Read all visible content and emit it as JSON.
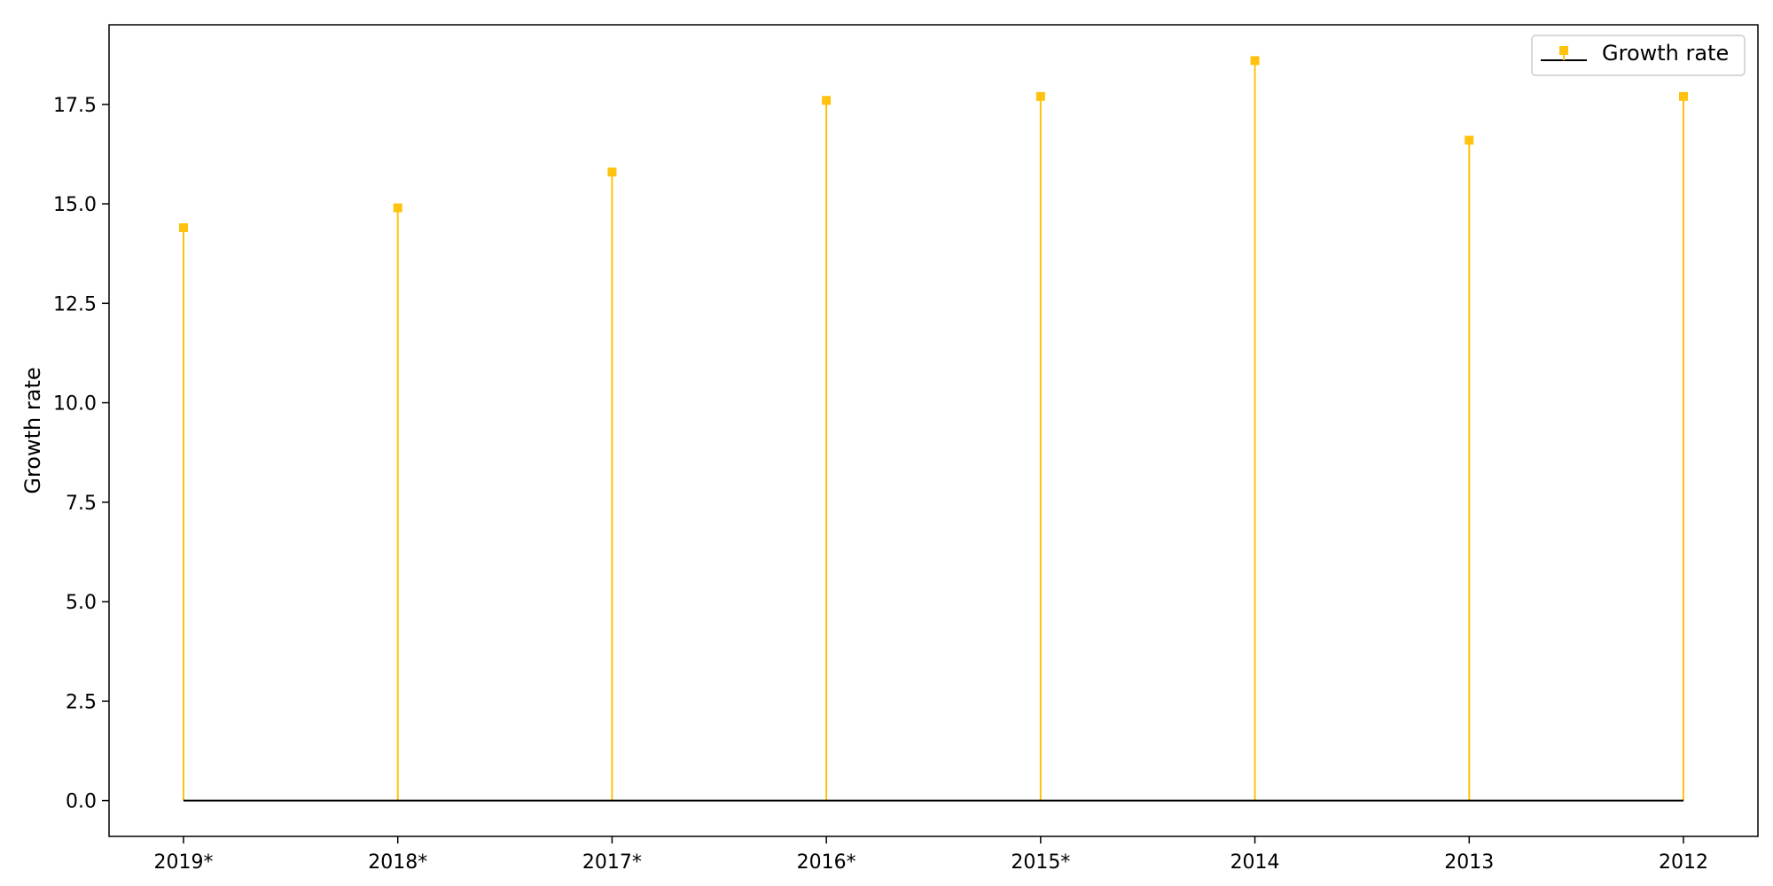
{
  "chart_data": {
    "type": "stem",
    "categories": [
      "2019*",
      "2018*",
      "2017*",
      "2016*",
      "2015*",
      "2014",
      "2013",
      "2012"
    ],
    "series": [
      {
        "name": "Growth rate",
        "values": [
          14.4,
          14.9,
          15.8,
          17.6,
          17.7,
          18.6,
          16.6,
          17.7
        ]
      }
    ],
    "title": "",
    "xlabel": "",
    "ylabel": "Growth rate",
    "ylim": [
      -0.9,
      19.5
    ],
    "yticks": [
      0.0,
      2.5,
      5.0,
      7.5,
      10.0,
      12.5,
      15.0,
      17.5
    ],
    "ytick_labels": [
      "0.0",
      "2.5",
      "5.0",
      "7.5",
      "10.0",
      "12.5",
      "15.0",
      "17.5"
    ],
    "grid": false,
    "legend_position": "top-right",
    "colors": {
      "stem": "#ffc20e",
      "baseline": "#000000",
      "axes": "#000000"
    }
  }
}
